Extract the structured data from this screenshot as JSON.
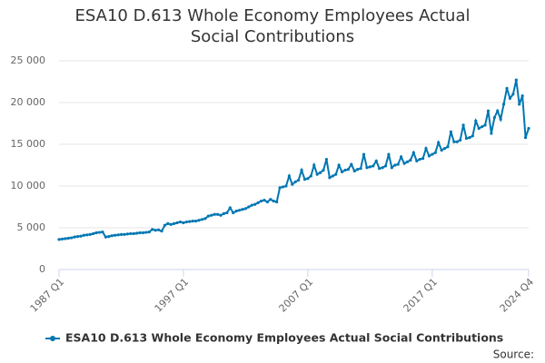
{
  "chart_data": {
    "type": "line",
    "title": "ESA10 D.613 Whole Economy Employees Actual Social Contributions",
    "source": "Source:",
    "categories": [
      "1987 Q1",
      null,
      null,
      null,
      null,
      null,
      null,
      null,
      null,
      null,
      null,
      null,
      null,
      null,
      null,
      null,
      null,
      null,
      null,
      null,
      null,
      null,
      null,
      null,
      null,
      null,
      null,
      null,
      null,
      null,
      null,
      null,
      null,
      null,
      null,
      null,
      null,
      null,
      null,
      null,
      "1997 Q1",
      null,
      null,
      null,
      null,
      null,
      null,
      null,
      null,
      null,
      null,
      null,
      null,
      null,
      null,
      null,
      null,
      null,
      null,
      null,
      null,
      null,
      null,
      null,
      null,
      null,
      null,
      null,
      null,
      null,
      null,
      null,
      null,
      null,
      null,
      null,
      null,
      null,
      null,
      null,
      "2007 Q1",
      null,
      null,
      null,
      null,
      null,
      null,
      null,
      null,
      null,
      null,
      null,
      null,
      null,
      null,
      null,
      null,
      null,
      null,
      null,
      null,
      null,
      null,
      null,
      null,
      null,
      null,
      null,
      null,
      null,
      null,
      null,
      null,
      null,
      null,
      null,
      null,
      null,
      null,
      null,
      "2017 Q1",
      null,
      null,
      null,
      null,
      null,
      null,
      null,
      null,
      null,
      null,
      null,
      null,
      null,
      null,
      null,
      null,
      null,
      null,
      null,
      null,
      null,
      null,
      null,
      null,
      null,
      null,
      null,
      null,
      null,
      null,
      "2024 Q4"
    ],
    "series": [
      {
        "name": "ESA10 D.613 Whole Economy Employees Actual Social Contributions",
        "color": "#0077b3",
        "values": [
          3600,
          3650,
          3700,
          3750,
          3800,
          3900,
          3950,
          4000,
          4100,
          4150,
          4200,
          4300,
          4400,
          4450,
          4500,
          3900,
          3950,
          4050,
          4100,
          4150,
          4200,
          4200,
          4250,
          4300,
          4300,
          4350,
          4400,
          4400,
          4450,
          4500,
          4800,
          4700,
          4750,
          4600,
          5300,
          5500,
          5400,
          5500,
          5600,
          5700,
          5600,
          5700,
          5750,
          5800,
          5800,
          5900,
          6000,
          6100,
          6400,
          6500,
          6600,
          6600,
          6500,
          6700,
          6800,
          7400,
          6800,
          7000,
          7100,
          7200,
          7300,
          7500,
          7700,
          7800,
          8000,
          8200,
          8300,
          8100,
          8400,
          8200,
          8100,
          9800,
          9900,
          10000,
          11200,
          10200,
          10500,
          10700,
          11900,
          10800,
          10900,
          11200,
          12500,
          11400,
          11600,
          11900,
          13200,
          11000,
          11200,
          11400,
          12500,
          11700,
          11900,
          12000,
          12600,
          11800,
          12000,
          12100,
          13800,
          12200,
          12300,
          12400,
          13000,
          12100,
          12200,
          12400,
          13800,
          12200,
          12500,
          12600,
          13500,
          12700,
          12900,
          13100,
          14000,
          13000,
          13200,
          13300,
          14500,
          13600,
          13800,
          14000,
          15200,
          14300,
          14500,
          14700,
          16500,
          15300,
          15300,
          15500,
          17300,
          15700,
          15800,
          16000,
          17800,
          16900,
          17100,
          17300,
          19000,
          16300,
          18200,
          19000,
          18000,
          19800,
          21700,
          20500,
          21000,
          22700,
          19800,
          20800,
          15800,
          16900
        ]
      }
    ],
    "ylim": [
      0,
      25000
    ],
    "yticks": [
      0,
      {
        "value": 5000,
        "label": "5 000"
      },
      {
        "value": 10000,
        "label": "10 000"
      },
      {
        "value": 15000,
        "label": "15 000"
      },
      {
        "value": 20000,
        "label": "20 000"
      },
      {
        "value": 25000,
        "label": "25 000"
      }
    ],
    "grid": true
  }
}
